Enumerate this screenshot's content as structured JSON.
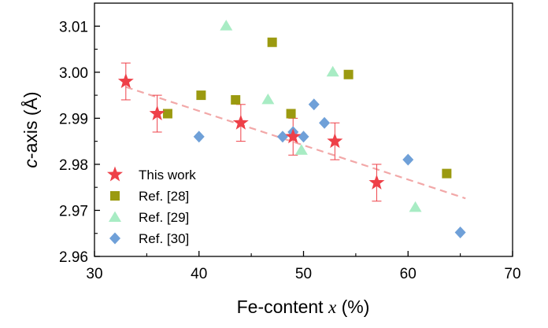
{
  "chart_data": {
    "type": "scatter",
    "xlabel_prefix": "Fe-content ",
    "xlabel_var": "x",
    "xlabel_suffix": " (%)",
    "ylabel_var": "c",
    "ylabel_suffix": "-axis (Å)",
    "xlim": [
      30,
      70
    ],
    "ylim": [
      2.96,
      3.015
    ],
    "xticks": [
      30,
      40,
      50,
      60,
      70
    ],
    "yticks": [
      2.96,
      2.97,
      2.98,
      2.99,
      3.0,
      3.01
    ],
    "ytick_labels": [
      "2.96",
      "2.97",
      "2.98",
      "2.99",
      "3.00",
      "3.01"
    ],
    "grid": false,
    "legend_position": "bottom-left",
    "series": [
      {
        "name": "This work",
        "marker": "star",
        "color": "#ee4048",
        "x": [
          33,
          36,
          44,
          49,
          53,
          57
        ],
        "y": [
          2.998,
          2.991,
          2.989,
          2.986,
          2.985,
          2.976
        ],
        "yerr": [
          0.004,
          0.004,
          0.004,
          0.004,
          0.004,
          0.004
        ]
      },
      {
        "name": "Ref. [28]",
        "marker": "square",
        "color": "#9b9a10",
        "x": [
          37,
          40.2,
          43.5,
          47,
          48.8,
          54.3,
          63.7
        ],
        "y": [
          2.991,
          2.995,
          2.994,
          3.0065,
          2.991,
          2.9995,
          2.978
        ]
      },
      {
        "name": "Ref. [29]",
        "marker": "triangle",
        "color": "#a8ecc4",
        "x": [
          42.6,
          46.6,
          49.8,
          52.8,
          60.7
        ],
        "y": [
          3.0101,
          2.9941,
          2.9831,
          3.0001,
          2.9707
        ]
      },
      {
        "name": "Ref. [30]",
        "marker": "diamond",
        "color": "#6fa0d8",
        "x": [
          40,
          48,
          49,
          50,
          51,
          52,
          60,
          65
        ],
        "y": [
          2.986,
          2.986,
          2.987,
          2.986,
          2.993,
          2.989,
          2.981,
          2.9652
        ]
      }
    ],
    "fit_line": {
      "color": "#f2a8a8",
      "x": [
        33,
        65.5
      ],
      "y": [
        2.9968,
        2.9726
      ]
    }
  }
}
